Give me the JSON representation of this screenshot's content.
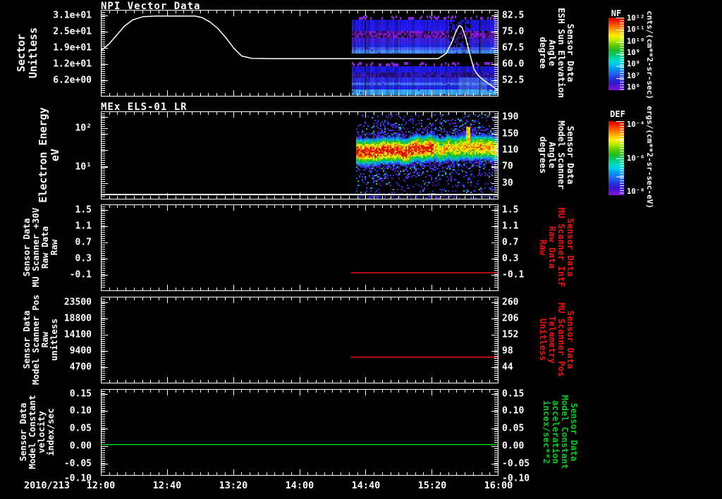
{
  "titles": {
    "panel1": "NPI Vector Data",
    "panel2": "MEx ELS-01 LR"
  },
  "x_axis": {
    "date_label": "2010/213",
    "ticks": [
      "12:00",
      "12:40",
      "13:20",
      "14:00",
      "14:40",
      "15:20",
      "16:00"
    ]
  },
  "panels": [
    {
      "id": "npi-vector",
      "left_label_lines": [
        "Sector",
        "Unitless"
      ],
      "left_ticks": [
        "3.1e+01",
        "2.5e+01",
        "1.9e+01",
        "1.2e+01",
        "6.2e+00"
      ],
      "right_ticks": [
        "82.5",
        "75.0",
        "67.5",
        "60.0",
        "52.5"
      ],
      "right_label_lines": [
        "Sensor Data",
        "ESH Sun Elevation",
        "Angle",
        "degree"
      ],
      "right_label_color": "#ffffff"
    },
    {
      "id": "mex-els-01",
      "left_label_lines": [
        "Electron Energy",
        "eV"
      ],
      "left_ticks": [
        "10²",
        "10¹"
      ],
      "right_ticks": [
        "190",
        "150",
        "110",
        "70",
        "30"
      ],
      "right_label_lines": [
        "Sensor Data",
        "Model Scanner",
        "Angle",
        "degrees"
      ],
      "right_label_color": "#ffffff"
    },
    {
      "id": "mu-scanner-intf",
      "left_label_lines": [
        "Sensor Data",
        "MU Scanner +30V",
        "Raw Data",
        "Raw"
      ],
      "left_ticks": [
        "1.5",
        "1.1",
        "0.7",
        "0.3",
        "-0.1"
      ],
      "right_ticks": [
        "1.5",
        "1.1",
        "0.7",
        "0.3",
        "-0.1"
      ],
      "right_label_lines": [
        "Sensor Data",
        "MU Scanner IntF",
        "Raw Data",
        "Raw"
      ],
      "right_label_color": "#ee1111"
    },
    {
      "id": "mu-scanner-pos",
      "left_label_lines": [
        "Sensor Data",
        "Model Scanner Pos",
        "Raw",
        "unitless"
      ],
      "left_ticks": [
        "23500",
        "18800",
        "14100",
        "9400",
        "4700"
      ],
      "right_ticks": [
        "260",
        "206",
        "152",
        "98",
        "44"
      ],
      "right_label_lines": [
        "Sensor Data",
        "MU Scanner Pos",
        "Telemetry",
        "Unitless"
      ],
      "right_label_color": "#ee1111"
    },
    {
      "id": "model-constant",
      "left_label_lines": [
        "Sensor Data",
        "Model Constant",
        "velocity",
        "index/sec"
      ],
      "left_ticks": [
        "0.15",
        "0.10",
        "0.05",
        "0.00",
        "-0.05",
        "-0.10"
      ],
      "right_ticks": [
        "0.15",
        "0.10",
        "0.05",
        "0.00",
        "-0.05",
        "-0.10"
      ],
      "right_label_lines": [
        "Sensor Data",
        "Model Constant",
        "acceleration",
        "incex/sec**2"
      ],
      "right_label_color": "#00cc22"
    }
  ],
  "colorbars": [
    {
      "title": "NF",
      "unit": "cnts/(cm**2-sr-sec)",
      "tick_labels": [
        "10¹²",
        "10¹¹",
        "10¹⁰",
        "10⁹",
        "10⁸",
        "10⁷",
        "10⁶"
      ]
    },
    {
      "title": "DEF",
      "unit": "ergs/(cm**2-sr-sec-eV)",
      "tick_labels": [
        "10⁻⁴",
        "10⁻⁶",
        "10⁻⁸"
      ]
    }
  ],
  "chart_data": [
    {
      "type": "line",
      "title": "NPI Vector Data",
      "x": {
        "date": "2010/213",
        "unit": "hours after 12:00",
        "tick_labels": [
          "12:00",
          "12:40",
          "13:20",
          "14:00",
          "14:40",
          "15:20",
          "16:00"
        ]
      },
      "y_left": {
        "label": "Sector Unitless",
        "tick_labels": [
          "3.1e+01",
          "2.5e+01",
          "1.9e+01",
          "1.2e+01",
          "6.2e+00"
        ],
        "tick_values": [
          31,
          24.8,
          18.6,
          12.4,
          6.2
        ]
      },
      "y_right": {
        "label": "Sensor Data ESH Sun Elevation Angle degree",
        "tick_labels": [
          "82.5",
          "75.0",
          "67.5",
          "60.0",
          "52.5"
        ]
      },
      "series": [
        {
          "name": "sector",
          "color": "#ffffff",
          "points_t_v": [
            [
              0,
              17.5
            ],
            [
              0.08,
              20
            ],
            [
              0.16,
              23.5
            ],
            [
              0.24,
              27
            ],
            [
              0.32,
              29.3
            ],
            [
              0.42,
              30.5
            ],
            [
              0.55,
              30.8
            ],
            [
              0.95,
              30.8
            ],
            [
              1.02,
              30.2
            ],
            [
              1.1,
              28.5
            ],
            [
              1.18,
              26
            ],
            [
              1.26,
              22.5
            ],
            [
              1.34,
              18.5
            ],
            [
              1.42,
              15.5
            ],
            [
              1.52,
              14.6
            ],
            [
              1.7,
              14.5
            ],
            [
              3.4,
              14.5
            ],
            [
              3.48,
              16.5
            ],
            [
              3.54,
              21
            ],
            [
              3.58,
              25
            ],
            [
              3.61,
              27.2
            ],
            [
              3.64,
              26.5
            ],
            [
              3.68,
              22
            ],
            [
              3.72,
              16
            ],
            [
              3.76,
              10.5
            ],
            [
              3.8,
              8.2
            ],
            [
              3.86,
              6.2
            ],
            [
              3.92,
              4.6
            ],
            [
              4.0,
              2.4
            ]
          ]
        }
      ],
      "spectrogram": {
        "colorbar": "NF",
        "t_start_hours": 2.53,
        "t_end_hours": 4.0,
        "description": "two groups of horizontal blue/purple count-rate bands with violet speckle rows"
      }
    },
    {
      "type": "spectrogram",
      "title": "MEx ELS-01 LR",
      "y_left": {
        "label": "Electron Energy eV",
        "scale": "log",
        "tick_labels": [
          "10²",
          "10¹"
        ]
      },
      "y_right": {
        "label": "Sensor Data Model Scanner Angle degrees",
        "tick_labels": [
          "190",
          "150",
          "110",
          "70",
          "30"
        ]
      },
      "spectrogram": {
        "colorbar": "DEF",
        "t_start_hours": 2.57,
        "t_end_hours": 4.0,
        "description": "intense yellow-red core band near 6-20 eV fading to green, cyan, blue speckle; hotter before ~15:00; narrow bright spike near 15:41; white horizontal line near panel bottom"
      }
    },
    {
      "type": "line",
      "y_left": {
        "label": "Sensor Data MU Scanner +30V Raw Data Raw",
        "tick_labels": [
          "1.5",
          "1.1",
          "0.7",
          "0.3",
          "-0.1"
        ]
      },
      "y_right": {
        "label": "Sensor Data MU Scanner IntF Raw Data Raw",
        "tick_labels": [
          "1.5",
          "1.1",
          "0.7",
          "0.3",
          "-0.1"
        ]
      },
      "series": [
        {
          "name": "mu-scanner-intf-raw",
          "color": "#ee1111",
          "points_t_v": [
            [
              2.52,
              -0.05
            ],
            [
              4.0,
              -0.05
            ]
          ]
        }
      ]
    },
    {
      "type": "line",
      "y_left": {
        "label": "Sensor Data Model Scanner Pos Raw unitless",
        "tick_labels": [
          "23500",
          "18800",
          "14100",
          "9400",
          "4700"
        ]
      },
      "y_right": {
        "label": "Sensor Data MU Scanner Pos Telemetry Unitless",
        "tick_labels": [
          "260",
          "206",
          "152",
          "98",
          "44"
        ]
      },
      "series": [
        {
          "name": "mu-scanner-pos-raw",
          "color": "#ee1111",
          "points_t_v": [
            [
              2.52,
              7600
            ],
            [
              4.0,
              7600
            ]
          ]
        }
      ]
    },
    {
      "type": "line",
      "y_left": {
        "label": "Sensor Data Model Constant velocity index/sec",
        "tick_labels": [
          "0.15",
          "0.10",
          "0.05",
          "0.00",
          "-0.05",
          "-0.10"
        ]
      },
      "y_right": {
        "label": "Sensor Data Model Constant acceleration incex/sec**2",
        "tick_labels": [
          "0.15",
          "0.10",
          "0.05",
          "0.00",
          "-0.05",
          "-0.10"
        ]
      },
      "series": [
        {
          "name": "model-constant-velocity",
          "color": "#00cc22",
          "points_t_v": [
            [
              0,
              0
            ],
            [
              4.0,
              0
            ]
          ]
        }
      ]
    }
  ]
}
